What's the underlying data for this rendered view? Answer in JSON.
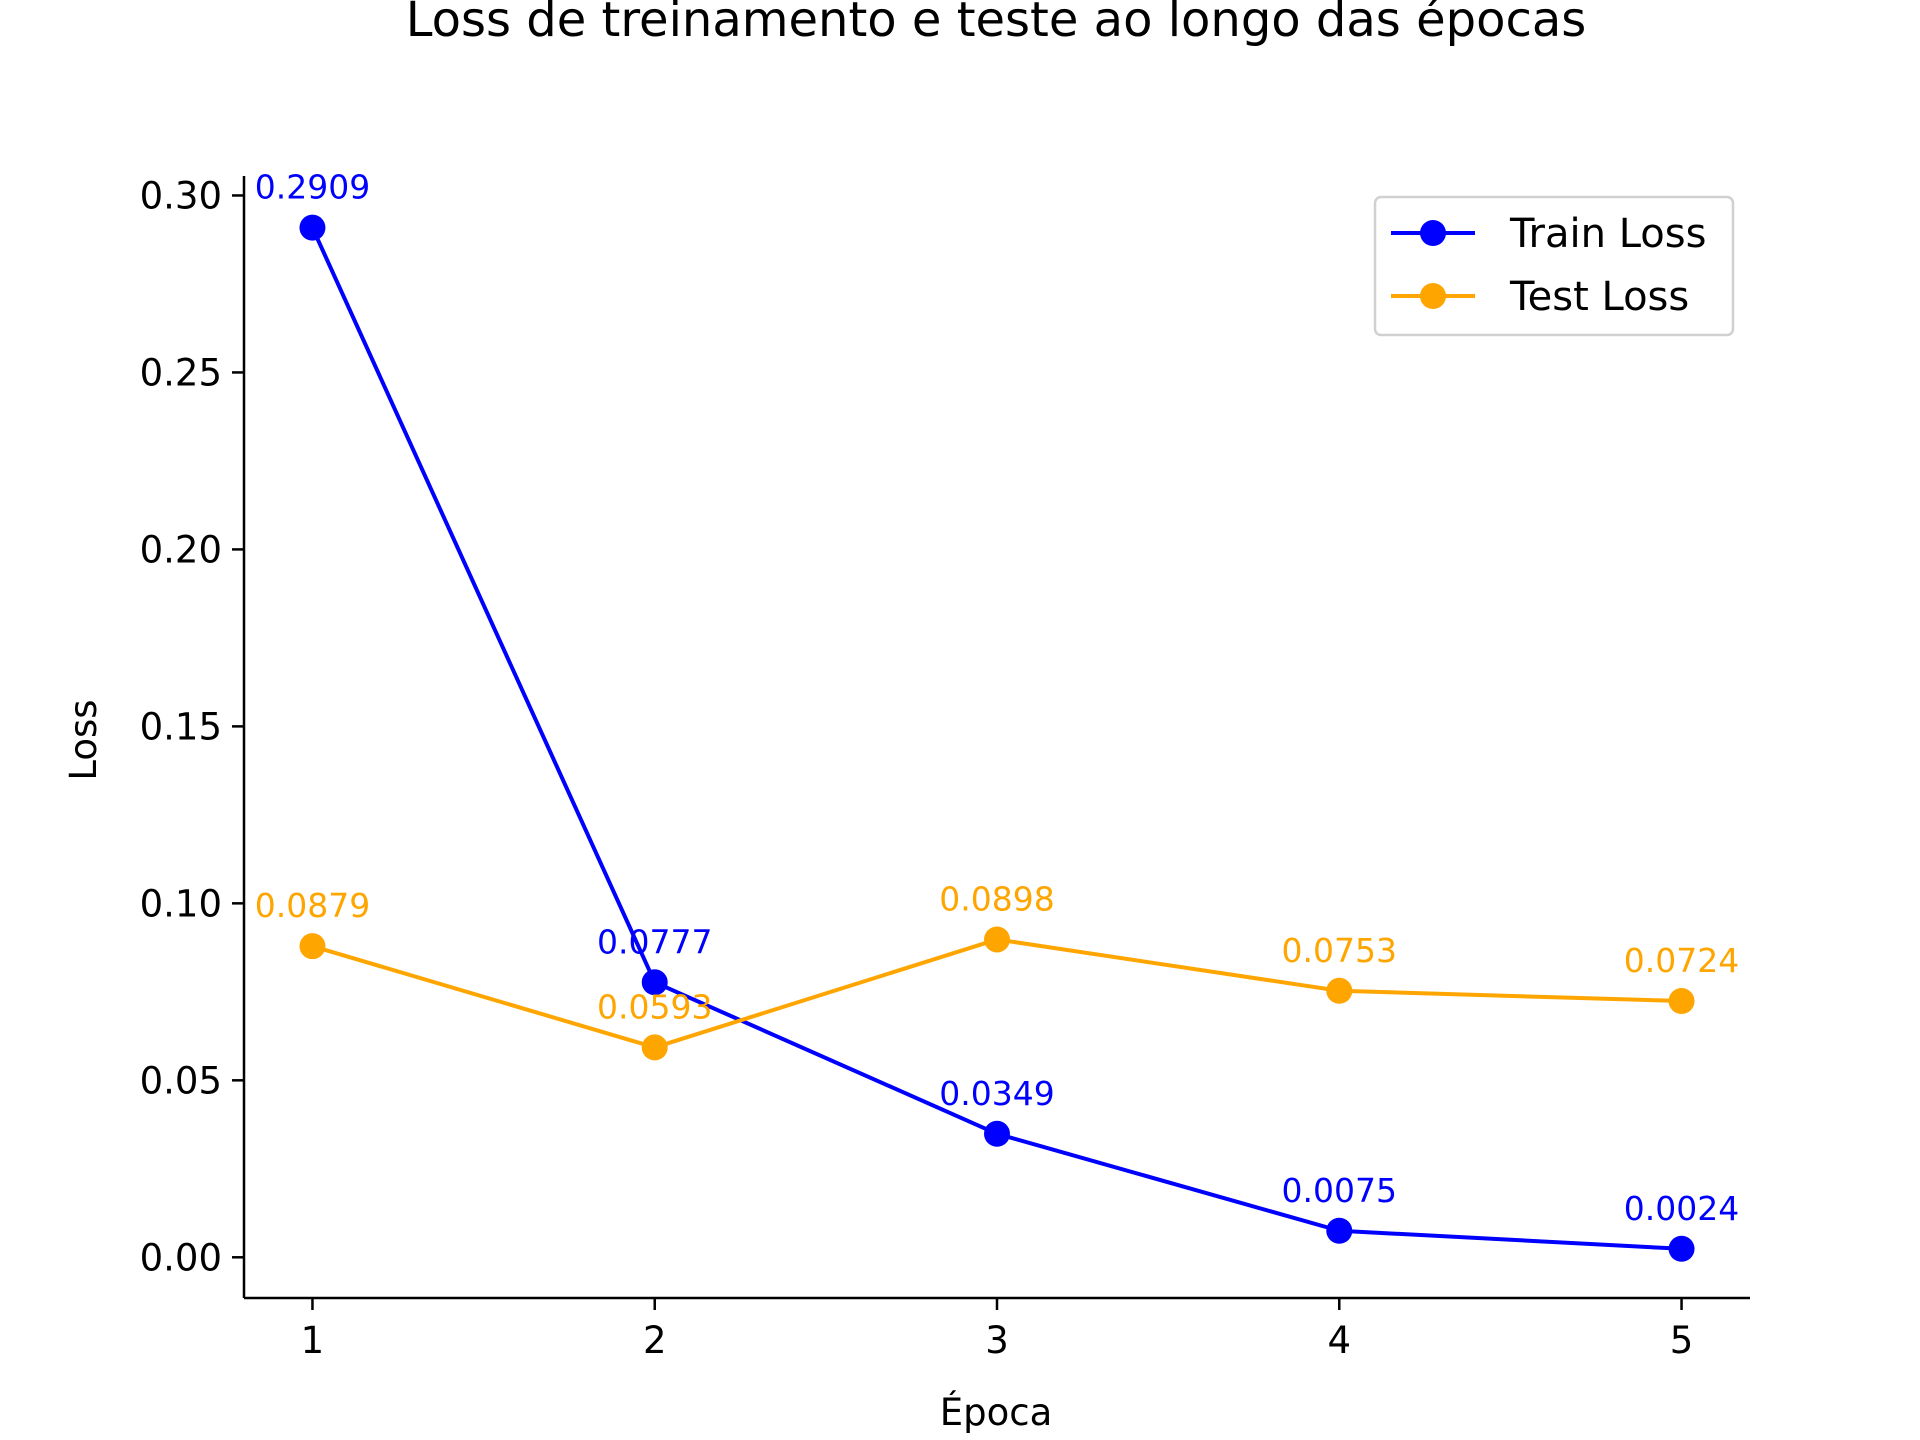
{
  "chart_data": {
    "type": "line",
    "title": "Loss de treinamento e teste ao longo das épocas",
    "xlabel": "Época",
    "ylabel": "Loss",
    "x": [
      1,
      2,
      3,
      4,
      5
    ],
    "xlim": [
      0.8,
      5.2
    ],
    "ylim": [
      -0.0115,
      0.3055
    ],
    "yticks": [
      0.0,
      0.05,
      0.1,
      0.15,
      0.2,
      0.25,
      0.3
    ],
    "ytick_labels": [
      "0.00",
      "0.05",
      "0.10",
      "0.15",
      "0.20",
      "0.25",
      "0.30"
    ],
    "xtick_labels": [
      "1",
      "2",
      "3",
      "4",
      "5"
    ],
    "grid": false,
    "legend_position": "top-right",
    "series": [
      {
        "name": "Train Loss",
        "color": "#0000ff",
        "marker": "circle",
        "values": [
          0.2909,
          0.0777,
          0.0349,
          0.0075,
          0.0024
        ],
        "labels": [
          "0.2909",
          "0.0777",
          "0.0349",
          "0.0075",
          "0.0024"
        ]
      },
      {
        "name": "Test Loss",
        "color": "#ffa500",
        "marker": "circle",
        "values": [
          0.0879,
          0.0593,
          0.0898,
          0.0753,
          0.0724
        ],
        "labels": [
          "0.0879",
          "0.0593",
          "0.0898",
          "0.0753",
          "0.0724"
        ]
      }
    ]
  }
}
